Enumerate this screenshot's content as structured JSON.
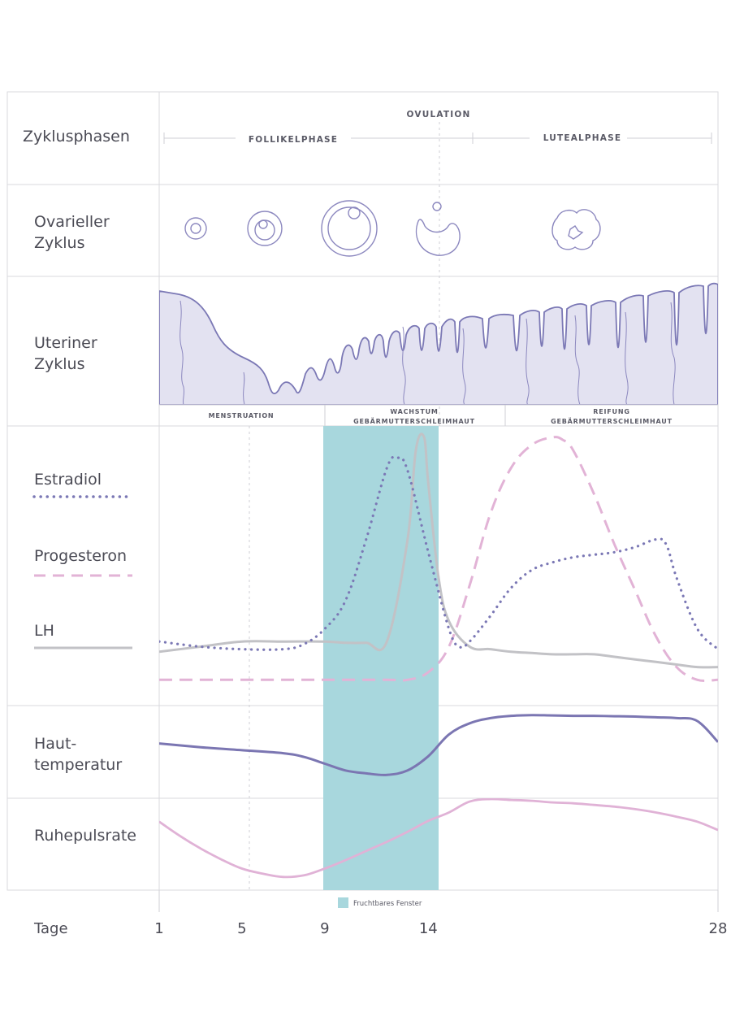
{
  "rows": {
    "phases": "Zyklusphasen",
    "ovarian": [
      "Ovarieller",
      "Zyklus"
    ],
    "uterine": [
      "Uteriner",
      "Zyklus"
    ],
    "skin_temp": [
      "Haut-",
      "temperatur"
    ],
    "resting_pulse": "Ruhepulsrate"
  },
  "phase_labels": {
    "ovulation": "OVULATION",
    "follicular": "FOLLIKELPHASE",
    "luteal": "LUTEALPHASE"
  },
  "uterine_phases": {
    "menstruation": "MENSTRUATION",
    "growth": [
      "WACHSTUM",
      "GEBÄRMUTTERSCHLEIMHAUT"
    ],
    "maturation": [
      "REIFUNG",
      "GEBÄRMUTTERSCHLEIMHAUT"
    ]
  },
  "legend": {
    "estradiol": "Estradiol",
    "progesterone": "Progesteron",
    "lh": "LH"
  },
  "fertile_window_label": "Fruchtbares Fenster",
  "colors": {
    "estradiol": "#7b78b5",
    "progesterone": "#e2b3d6",
    "lh": "#c2c2c6",
    "skin_temp": "#7b76b2",
    "resting_pulse": "#e0b2d6",
    "fertile_window": "#a8d7dd",
    "uterine_fill": "#e3e2f1",
    "uterine_line": "#7b78b5",
    "ovarian_line": "#8c88bf"
  },
  "chart_data": {
    "type": "line",
    "title": "",
    "xlabel": "Tage",
    "ylabel": "",
    "xlim": [
      1,
      28
    ],
    "ylim": [
      0,
      100
    ],
    "xticks": [
      "1",
      "5",
      "9",
      "14",
      "28"
    ],
    "fertile_window": [
      9,
      14
    ],
    "series": [
      {
        "name": "Estradiol",
        "style": "dotted",
        "x": [
          1,
          3,
          5,
          7,
          8,
          9,
          10,
          11,
          12,
          12.5,
          13,
          14,
          15,
          15.5,
          16,
          17,
          18,
          19,
          20,
          21,
          22,
          23,
          24,
          25,
          25.5,
          26,
          27,
          28
        ],
        "values": [
          20,
          18,
          17,
          17,
          19,
          25,
          36,
          60,
          88,
          92,
          87,
          55,
          25,
          18,
          20,
          30,
          41,
          48,
          51,
          53,
          54,
          55,
          57,
          60,
          58,
          45,
          25,
          17
        ]
      },
      {
        "name": "Progesteron",
        "style": "dashed",
        "x": [
          1,
          5,
          9,
          12,
          13,
          14,
          15,
          16,
          17,
          18,
          19,
          20,
          20.5,
          21,
          22,
          23,
          24,
          25,
          26,
          27,
          28
        ],
        "values": [
          5,
          5,
          5,
          5,
          5,
          8,
          18,
          42,
          70,
          88,
          97,
          100,
          99,
          95,
          78,
          58,
          40,
          22,
          10,
          5,
          5
        ],
        "ylabel": ""
      },
      {
        "name": "LH",
        "style": "solid",
        "x": [
          1,
          3,
          5,
          7,
          9,
          10,
          11,
          12,
          13,
          13.4,
          13.8,
          14,
          14.5,
          15,
          16,
          17,
          18,
          19,
          20,
          21,
          22,
          23,
          24,
          25,
          26,
          27,
          28
        ],
        "values": [
          16,
          18,
          20,
          20,
          20,
          19.5,
          19.5,
          20,
          60,
          95,
          100,
          82,
          45,
          28,
          18,
          17,
          16,
          15.5,
          15,
          15,
          15,
          14,
          13,
          12,
          11,
          10,
          10
        ]
      },
      {
        "name": "Hauttemperatur",
        "style": "solid",
        "x": [
          1,
          3,
          5,
          7,
          8,
          9,
          10,
          11,
          12,
          13,
          14,
          15,
          16,
          17,
          18,
          19,
          20,
          21,
          22,
          23,
          24,
          25,
          26,
          27,
          28
        ],
        "values": [
          58,
          53,
          49,
          45,
          40,
          31,
          22,
          18,
          16,
          22,
          41,
          70,
          85,
          92,
          95,
          96,
          95.5,
          95,
          95,
          94.5,
          94,
          93,
          92,
          88,
          60
        ]
      },
      {
        "name": "Ruhepulsrate",
        "style": "solid",
        "x": [
          1,
          2,
          3,
          4,
          5,
          6,
          7,
          8,
          9,
          10,
          11,
          12,
          13,
          14,
          15,
          16,
          17,
          18,
          19,
          20,
          21,
          22,
          23,
          24,
          25,
          26,
          27,
          28
        ],
        "values": [
          72,
          55,
          40,
          27,
          16,
          10,
          6,
          8,
          16,
          26,
          37,
          48,
          60,
          73,
          83,
          96,
          99,
          98,
          97,
          95,
          94,
          92,
          90,
          87,
          83,
          78,
          72,
          62
        ]
      }
    ]
  }
}
